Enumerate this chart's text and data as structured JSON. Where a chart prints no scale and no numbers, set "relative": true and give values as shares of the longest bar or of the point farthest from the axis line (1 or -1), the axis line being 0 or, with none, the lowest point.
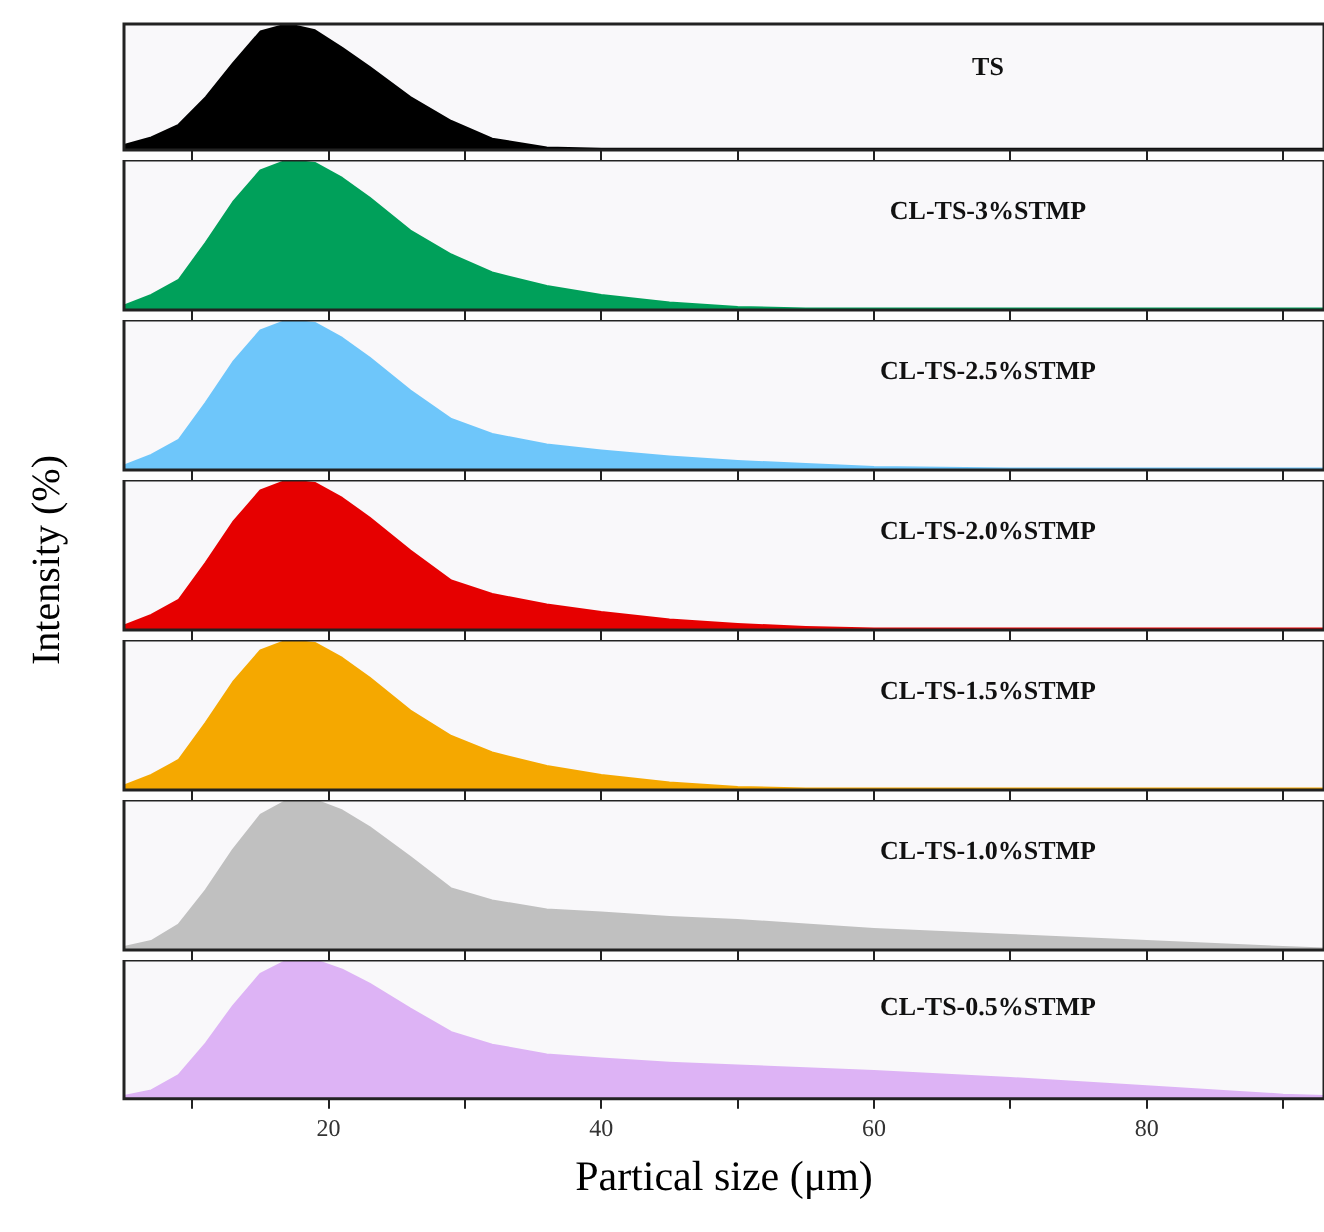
{
  "chart_data": [
    {
      "type": "area",
      "relative": true,
      "x": [
        5,
        7,
        9,
        11,
        13,
        15,
        17,
        19,
        21,
        23,
        26,
        29,
        32,
        36,
        40,
        45,
        50,
        55,
        60,
        70,
        80,
        90,
        93
      ],
      "xlim": [
        5,
        93
      ],
      "xticks": [
        {
          "value": 10,
          "label": null
        },
        {
          "value": 20,
          "label": null
        },
        {
          "value": 30,
          "label": null
        },
        {
          "value": 40,
          "label": null
        },
        {
          "value": 50,
          "label": null
        },
        {
          "value": 60,
          "label": null
        },
        {
          "value": 70,
          "label": null
        },
        {
          "value": 80,
          "label": null
        },
        {
          "value": 90,
          "label": null
        }
      ],
      "tick_labels": false,
      "marker": "none",
      "legend": false,
      "grid": false,
      "series": [
        {
          "name": "TS",
          "color": "#000000",
          "values": [
            0.04,
            0.1,
            0.2,
            0.42,
            0.69,
            0.94,
            1,
            0.95,
            0.81,
            0.66,
            0.42,
            0.23,
            0.09,
            0.02,
            0.01,
            0.01,
            0.01,
            0.01,
            0.01,
            0.01,
            0.01,
            0.01,
            0.01
          ]
        }
      ]
    },
    {
      "type": "area",
      "relative": true,
      "x": [
        5,
        7,
        9,
        11,
        13,
        15,
        17,
        19,
        21,
        23,
        26,
        29,
        32,
        36,
        40,
        45,
        50,
        55,
        60,
        70,
        80,
        90,
        93
      ],
      "xlim": [
        5,
        93
      ],
      "xticks": [
        {
          "value": 10,
          "label": null
        },
        {
          "value": 20,
          "label": null
        },
        {
          "value": 30,
          "label": null
        },
        {
          "value": 40,
          "label": null
        },
        {
          "value": 50,
          "label": null
        },
        {
          "value": 60,
          "label": null
        },
        {
          "value": 70,
          "label": null
        },
        {
          "value": 80,
          "label": null
        },
        {
          "value": 90,
          "label": null
        }
      ],
      "tick_labels": false,
      "marker": "none",
      "legend": false,
      "grid": false,
      "series": [
        {
          "name": "CL-TS-3%STMP",
          "color": "#00a05a",
          "values": [
            0.03,
            0.1,
            0.2,
            0.45,
            0.72,
            0.93,
            1,
            0.98,
            0.88,
            0.75,
            0.53,
            0.37,
            0.25,
            0.16,
            0.1,
            0.05,
            0.02,
            0.01,
            0.01,
            0.01,
            0.01,
            0.01,
            0.01
          ]
        }
      ]
    },
    {
      "type": "area",
      "relative": true,
      "x": [
        5,
        7,
        9,
        11,
        13,
        15,
        17,
        19,
        21,
        23,
        26,
        29,
        32,
        36,
        40,
        45,
        50,
        55,
        60,
        70,
        80,
        90,
        93
      ],
      "xlim": [
        5,
        93
      ],
      "xticks": [
        {
          "value": 10,
          "label": null
        },
        {
          "value": 20,
          "label": null
        },
        {
          "value": 30,
          "label": null
        },
        {
          "value": 40,
          "label": null
        },
        {
          "value": 50,
          "label": null
        },
        {
          "value": 60,
          "label": null
        },
        {
          "value": 70,
          "label": null
        },
        {
          "value": 80,
          "label": null
        },
        {
          "value": 90,
          "label": null
        }
      ],
      "tick_labels": false,
      "marker": "none",
      "legend": false,
      "grid": false,
      "series": [
        {
          "name": "CL-TS-2.5%STMP",
          "color": "#6ec6fa",
          "values": [
            0.03,
            0.1,
            0.2,
            0.45,
            0.72,
            0.93,
            1,
            0.98,
            0.88,
            0.75,
            0.53,
            0.34,
            0.24,
            0.17,
            0.13,
            0.09,
            0.06,
            0.04,
            0.02,
            0.01,
            0.01,
            0.01,
            0.01
          ]
        }
      ]
    },
    {
      "type": "area",
      "relative": true,
      "ylabel": "Intensity (%)",
      "x": [
        5,
        7,
        9,
        11,
        13,
        15,
        17,
        19,
        21,
        23,
        26,
        29,
        32,
        36,
        40,
        45,
        50,
        55,
        60,
        70,
        80,
        90,
        93
      ],
      "xlim": [
        5,
        93
      ],
      "xticks": [
        {
          "value": 10,
          "label": null
        },
        {
          "value": 20,
          "label": null
        },
        {
          "value": 30,
          "label": null
        },
        {
          "value": 40,
          "label": null
        },
        {
          "value": 50,
          "label": null
        },
        {
          "value": 60,
          "label": null
        },
        {
          "value": 70,
          "label": null
        },
        {
          "value": 80,
          "label": null
        },
        {
          "value": 90,
          "label": null
        }
      ],
      "tick_labels": false,
      "marker": "none",
      "legend": false,
      "grid": false,
      "series": [
        {
          "name": "CL-TS-2.0%STMP",
          "color": "#e60000",
          "values": [
            0.03,
            0.1,
            0.2,
            0.45,
            0.72,
            0.93,
            1,
            0.98,
            0.88,
            0.75,
            0.53,
            0.33,
            0.24,
            0.17,
            0.12,
            0.07,
            0.04,
            0.02,
            0.01,
            0.01,
            0.01,
            0.01,
            0.01
          ]
        }
      ]
    },
    {
      "type": "area",
      "relative": true,
      "x": [
        5,
        7,
        9,
        11,
        13,
        15,
        17,
        19,
        21,
        23,
        26,
        29,
        32,
        36,
        40,
        45,
        50,
        55,
        60,
        70,
        80,
        90,
        93
      ],
      "xlim": [
        5,
        93
      ],
      "xticks": [
        {
          "value": 10,
          "label": null
        },
        {
          "value": 20,
          "label": null
        },
        {
          "value": 30,
          "label": null
        },
        {
          "value": 40,
          "label": null
        },
        {
          "value": 50,
          "label": null
        },
        {
          "value": 60,
          "label": null
        },
        {
          "value": 70,
          "label": null
        },
        {
          "value": 80,
          "label": null
        },
        {
          "value": 90,
          "label": null
        }
      ],
      "tick_labels": false,
      "marker": "none",
      "legend": false,
      "grid": false,
      "series": [
        {
          "name": "CL-TS-1.5%STMP",
          "color": "#f5a800",
          "values": [
            0.03,
            0.1,
            0.2,
            0.45,
            0.72,
            0.93,
            1,
            0.98,
            0.88,
            0.75,
            0.53,
            0.36,
            0.25,
            0.16,
            0.1,
            0.05,
            0.02,
            0.01,
            0.01,
            0.01,
            0.01,
            0.01,
            0.01
          ]
        }
      ]
    },
    {
      "type": "area",
      "relative": true,
      "x": [
        5,
        7,
        9,
        11,
        13,
        15,
        17,
        19,
        21,
        23,
        26,
        29,
        32,
        36,
        40,
        45,
        50,
        55,
        60,
        70,
        80,
        90,
        93
      ],
      "xlim": [
        5,
        93
      ],
      "xticks": [
        {
          "value": 10,
          "label": null
        },
        {
          "value": 20,
          "label": null
        },
        {
          "value": 30,
          "label": null
        },
        {
          "value": 40,
          "label": null
        },
        {
          "value": 50,
          "label": null
        },
        {
          "value": 60,
          "label": null
        },
        {
          "value": 70,
          "label": null
        },
        {
          "value": 80,
          "label": null
        },
        {
          "value": 90,
          "label": null
        }
      ],
      "tick_labels": false,
      "marker": "none",
      "legend": false,
      "grid": false,
      "series": [
        {
          "name": "CL-TS-1.0%STMP",
          "color": "#c0c0c0",
          "values": [
            0.02,
            0.06,
            0.17,
            0.4,
            0.67,
            0.9,
            1,
            1,
            0.93,
            0.82,
            0.62,
            0.41,
            0.33,
            0.27,
            0.25,
            0.22,
            0.2,
            0.17,
            0.14,
            0.1,
            0.06,
            0.02,
            0.01
          ]
        }
      ]
    },
    {
      "type": "area",
      "relative": true,
      "xlabel": "Partical size (μm)",
      "x": [
        5,
        7,
        9,
        11,
        13,
        15,
        17,
        19,
        21,
        23,
        26,
        29,
        32,
        36,
        40,
        45,
        50,
        55,
        60,
        70,
        80,
        90,
        93
      ],
      "xlim": [
        5,
        93
      ],
      "xticks": [
        {
          "value": 10,
          "label": null
        },
        20,
        {
          "value": 30,
          "label": null
        },
        40,
        {
          "value": 50,
          "label": null
        },
        60,
        {
          "value": 70,
          "label": null
        },
        80,
        {
          "value": 90,
          "label": null
        }
      ],
      "tick_labels": "x",
      "marker": "none",
      "legend": false,
      "grid": false,
      "series": [
        {
          "name": "CL-TS-0.5%STMP",
          "color": "#ddb3f5",
          "values": [
            0.02,
            0.06,
            0.17,
            0.4,
            0.67,
            0.9,
            1,
            1,
            0.93,
            0.83,
            0.65,
            0.48,
            0.39,
            0.32,
            0.29,
            0.26,
            0.24,
            0.22,
            0.2,
            0.15,
            0.09,
            0.03,
            0.02
          ]
        }
      ]
    }
  ]
}
